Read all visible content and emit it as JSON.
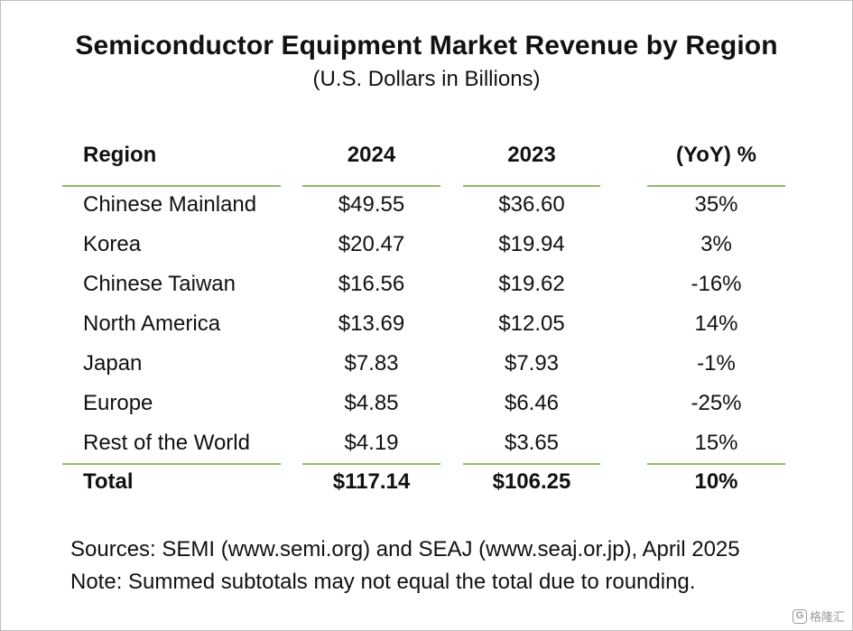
{
  "chart_data": {
    "type": "table",
    "title": "Semiconductor Equipment Market Revenue by Region",
    "subtitle": "(U.S. Dollars in Billions)",
    "columns": [
      "Region",
      "2024",
      "2023",
      "(YoY) %"
    ],
    "rows": [
      [
        "Chinese Mainland",
        "$49.55",
        "$36.60",
        "35%"
      ],
      [
        "Korea",
        "$20.47",
        "$19.94",
        "3%"
      ],
      [
        "Chinese Taiwan",
        "$16.56",
        "$19.62",
        "-16%"
      ],
      [
        "North America",
        "$13.69",
        "$12.05",
        "14%"
      ],
      [
        "Japan",
        "$7.83",
        "$7.93",
        "-1%"
      ],
      [
        "Europe",
        "$4.85",
        "$6.46",
        "-25%"
      ],
      [
        "Rest of the World",
        "$4.19",
        "$3.65",
        "15%"
      ]
    ],
    "total": [
      "Total",
      "$117.14",
      "$106.25",
      "10%"
    ],
    "values_2024": [
      49.55,
      20.47,
      16.56,
      13.69,
      7.83,
      4.85,
      4.19
    ],
    "values_2023": [
      36.6,
      19.94,
      19.62,
      12.05,
      7.93,
      6.46,
      3.65
    ],
    "yoy_percent": [
      35,
      3,
      -16,
      14,
      -1,
      -25,
      15
    ],
    "total_values": {
      "2024": 117.14,
      "2023": 106.25,
      "yoy_percent": 10
    },
    "footnotes": [
      "Sources: SEMI (www.semi.org) and SEAJ (www.seaj.or.jp), April 2025",
      "Note: Summed subtotals may not equal the total due to rounding."
    ],
    "rule_color": "#8dbb68"
  },
  "watermark": {
    "text": "格隆汇",
    "logo_glyph": "G"
  }
}
